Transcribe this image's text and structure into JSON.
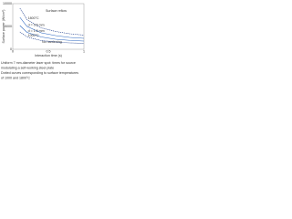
{
  "chart_data": {
    "type": "line",
    "x_label": "Interaction time (s)",
    "y_label": "Surface power (W/cm²)",
    "x": [
      0.1,
      0.2,
      0.4,
      0.6,
      0.8,
      1.0
    ],
    "series": [
      {
        "name": "1800°C",
        "color": "#1a3a8a",
        "values": [
          9000,
          6500,
          4700,
          3900,
          3400,
          3100
        ]
      },
      {
        "name": "d = 0.5 mm",
        "color": "#2a66c0",
        "values": [
          7000,
          5000,
          3600,
          3000,
          2600,
          2400
        ]
      },
      {
        "name": "d = 1.5 mm",
        "color": "#2a66c0",
        "values": [
          5200,
          3700,
          2700,
          2200,
          1950,
          1800
        ]
      },
      {
        "name": "1000°C",
        "color": "#1a3a8a",
        "values": [
          3800,
          2700,
          1900,
          1600,
          1400,
          1300
        ]
      }
    ],
    "annotations": [
      "Surface reflow",
      "No hardening"
    ],
    "xlim": [
      0,
      1
    ],
    "xticks": [
      0,
      0.5,
      1
    ],
    "ylim": [
      0,
      10000
    ],
    "yticks": [
      0,
      5000,
      10000
    ],
    "caption": [
      "Uniform 7 mm-diameter laser spot: times for source",
      "modulating a self-working steel plate",
      "Dotted curves corresponding to surface temperatures",
      "of 1000 and 1800°C"
    ]
  }
}
